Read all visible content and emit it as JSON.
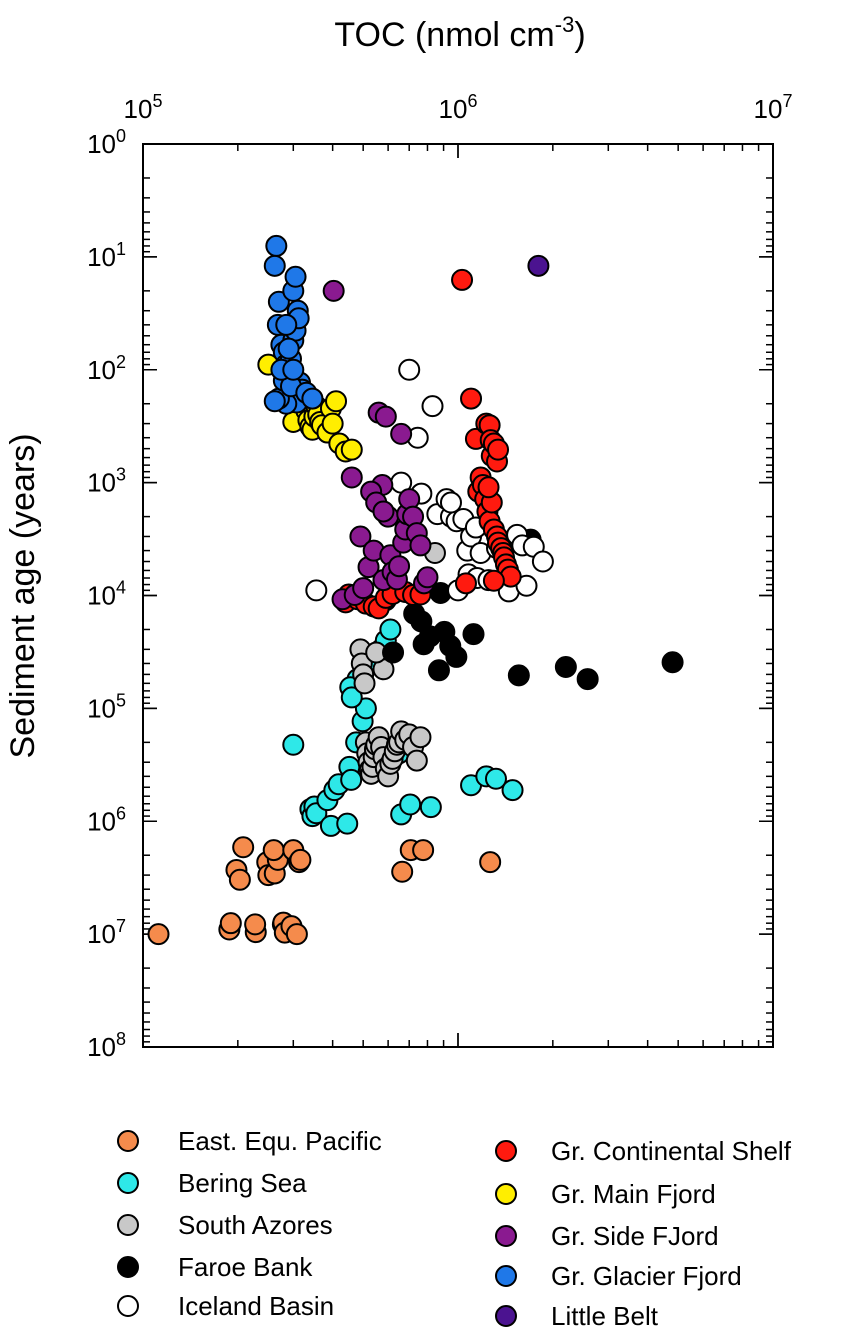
{
  "chart_data": {
    "type": "scatter",
    "title": "",
    "xlabel": "TOC (nmol cm",
    "xlabel_sup": "-3",
    "xlabel_end": ")",
    "ylabel": "Sediment age (years)",
    "x_scale": "log",
    "y_scale": "log",
    "y_inverted": true,
    "x_axis_position": "top",
    "xlim": [
      100000,
      10000000
    ],
    "ylim": [
      1,
      100000000
    ],
    "grid": false,
    "legend_placement": "bottom",
    "x_ticks": [
      {
        "base": "10",
        "exp": "5",
        "value": 100000
      },
      {
        "base": "10",
        "exp": "6",
        "value": 1000000
      },
      {
        "base": "10",
        "exp": "7",
        "value": 10000000
      }
    ],
    "y_ticks": [
      {
        "base": "10",
        "exp": "0",
        "value": 1
      },
      {
        "base": "10",
        "exp": "1",
        "value": 10
      },
      {
        "base": "10",
        "exp": "2",
        "value": 100
      },
      {
        "base": "10",
        "exp": "3",
        "value": 1000
      },
      {
        "base": "10",
        "exp": "4",
        "value": 10000
      },
      {
        "base": "10",
        "exp": "5",
        "value": 100000
      },
      {
        "base": "10",
        "exp": "6",
        "value": 1000000
      },
      {
        "base": "10",
        "exp": "7",
        "value": 10000000
      },
      {
        "base": "10",
        "exp": "8",
        "value": 100000000
      }
    ],
    "series": [
      {
        "name": "East. Equ. Pacific",
        "color": "#f58b4c",
        "points": [
          [
            112000,
            10000000
          ],
          [
            188000,
            9100000
          ],
          [
            190000,
            8000000
          ],
          [
            208000,
            1700000
          ],
          [
            198000,
            2700000
          ],
          [
            203000,
            3300000
          ],
          [
            228000,
            9600000
          ],
          [
            227000,
            8200000
          ],
          [
            248000,
            2300000
          ],
          [
            250000,
            3000000
          ],
          [
            262000,
            2900000
          ],
          [
            268000,
            2200000
          ],
          [
            260000,
            1800000
          ],
          [
            278000,
            8200000
          ],
          [
            279000,
            7900000
          ],
          [
            282000,
            9700000
          ],
          [
            296000,
            8500000
          ],
          [
            300000,
            1800000
          ],
          [
            308000,
            10000000
          ],
          [
            313000,
            2300000
          ],
          [
            316000,
            2200000
          ],
          [
            665000,
            2800000
          ],
          [
            708000,
            1800000
          ],
          [
            775000,
            1800000
          ],
          [
            1265000,
            2300000
          ]
        ]
      },
      {
        "name": "Bering Sea",
        "color": "#2ee8e8",
        "points": [
          [
            300000,
            210000
          ],
          [
            340000,
            780000
          ],
          [
            345000,
            900000
          ],
          [
            350000,
            740000
          ],
          [
            355000,
            850000
          ],
          [
            385000,
            650000
          ],
          [
            395000,
            1100000
          ],
          [
            405000,
            530000
          ],
          [
            418000,
            470000
          ],
          [
            445000,
            1050000
          ],
          [
            452000,
            330000
          ],
          [
            458000,
            430000
          ],
          [
            475000,
            200000
          ],
          [
            498000,
            130000
          ],
          [
            510000,
            100000
          ],
          [
            480000,
            55000
          ],
          [
            455000,
            65000
          ],
          [
            460000,
            80000
          ],
          [
            525000,
            36000
          ],
          [
            545000,
            40000
          ],
          [
            570000,
            30000
          ],
          [
            590000,
            25000
          ],
          [
            610000,
            20000
          ],
          [
            600000,
            320000
          ],
          [
            650000,
            250000
          ],
          [
            660000,
            870000
          ],
          [
            705000,
            710000
          ],
          [
            820000,
            750000
          ],
          [
            1100000,
            480000
          ],
          [
            1230000,
            400000
          ],
          [
            1320000,
            420000
          ],
          [
            1490000,
            530000
          ]
        ]
      },
      {
        "name": "South Azores",
        "color": "#c8c8c8",
        "points": [
          [
            490000,
            30000
          ],
          [
            495000,
            40000
          ],
          [
            500000,
            50000
          ],
          [
            505000,
            60000
          ],
          [
            510000,
            200000
          ],
          [
            515000,
            250000
          ],
          [
            520000,
            300000
          ],
          [
            525000,
            350000
          ],
          [
            530000,
            380000
          ],
          [
            535000,
            330000
          ],
          [
            540000,
            270000
          ],
          [
            545000,
            230000
          ],
          [
            550000,
            210000
          ],
          [
            560000,
            180000
          ],
          [
            570000,
            220000
          ],
          [
            580000,
            270000
          ],
          [
            590000,
            340000
          ],
          [
            600000,
            400000
          ],
          [
            610000,
            310000
          ],
          [
            620000,
            280000
          ],
          [
            630000,
            240000
          ],
          [
            640000,
            210000
          ],
          [
            650000,
            200000
          ],
          [
            660000,
            160000
          ],
          [
            680000,
            190000
          ],
          [
            700000,
            170000
          ],
          [
            720000,
            220000
          ],
          [
            740000,
            290000
          ],
          [
            760000,
            180000
          ],
          [
            845000,
            4200
          ],
          [
            580000,
            45000
          ],
          [
            550000,
            32000
          ]
        ]
      },
      {
        "name": "Faroe Bank",
        "color": "#000000",
        "points": [
          [
            590000,
            11000
          ],
          [
            622000,
            32000
          ],
          [
            726000,
            14500
          ],
          [
            765000,
            17000
          ],
          [
            778000,
            27000
          ],
          [
            815000,
            23000
          ],
          [
            870000,
            46000
          ],
          [
            880000,
            9500
          ],
          [
            905000,
            21000
          ],
          [
            945000,
            28000
          ],
          [
            988000,
            35000
          ],
          [
            1120000,
            22000
          ],
          [
            1560000,
            51000
          ],
          [
            1700000,
            3200
          ],
          [
            2200000,
            43000
          ],
          [
            2580000,
            55000
          ],
          [
            4800000,
            39000
          ]
        ]
      },
      {
        "name": "Iceland Basin",
        "color": "#ffffff",
        "points": [
          [
            355000,
            9000
          ],
          [
            660000,
            1000
          ],
          [
            700000,
            100
          ],
          [
            745000,
            400
          ],
          [
            765000,
            1250
          ],
          [
            830000,
            210
          ],
          [
            860000,
            1900
          ],
          [
            920000,
            1400
          ],
          [
            950000,
            2000
          ],
          [
            990000,
            2200
          ],
          [
            1000000,
            9000
          ],
          [
            1040000,
            2100
          ],
          [
            1070000,
            4000
          ],
          [
            1080000,
            6500
          ],
          [
            1100000,
            3000
          ],
          [
            1150000,
            7000
          ],
          [
            1180000,
            4200
          ],
          [
            1250000,
            7300
          ],
          [
            1330000,
            3800
          ],
          [
            1450000,
            9200
          ],
          [
            1540000,
            2900
          ],
          [
            1600000,
            3600
          ],
          [
            1650000,
            8200
          ],
          [
            1740000,
            3700
          ],
          [
            1860000,
            5000
          ],
          [
            950000,
            1500
          ],
          [
            1140000,
            2500
          ]
        ]
      },
      {
        "name": "Gr. Continental Shelf",
        "color": "#ff1a0f",
        "points": [
          [
            1030000,
            16
          ],
          [
            1100000,
            180
          ],
          [
            1140000,
            410
          ],
          [
            1230000,
            300
          ],
          [
            1260000,
            310
          ],
          [
            1270000,
            420
          ],
          [
            1280000,
            580
          ],
          [
            1300000,
            450
          ],
          [
            1330000,
            650
          ],
          [
            1340000,
            510
          ],
          [
            1160000,
            1200
          ],
          [
            1180000,
            900
          ],
          [
            1200000,
            1050
          ],
          [
            1220000,
            1400
          ],
          [
            1240000,
            1800
          ],
          [
            1260000,
            2200
          ],
          [
            1300000,
            2600
          ],
          [
            1330000,
            3000
          ],
          [
            1340000,
            3400
          ],
          [
            1370000,
            3800
          ],
          [
            1390000,
            4200
          ],
          [
            1400000,
            4600
          ],
          [
            1420000,
            5300
          ],
          [
            1440000,
            5900
          ],
          [
            1470000,
            6800
          ],
          [
            1280000,
            1500
          ],
          [
            1250000,
            1100
          ],
          [
            1060000,
            7800
          ],
          [
            1300000,
            7400
          ],
          [
            440000,
            11500
          ],
          [
            450000,
            9800
          ],
          [
            480000,
            10800
          ],
          [
            510000,
            11800
          ],
          [
            540000,
            12500
          ],
          [
            560000,
            13000
          ],
          [
            590000,
            10500
          ],
          [
            620000,
            9700
          ],
          [
            680000,
            9300
          ],
          [
            720000,
            9900
          ],
          [
            760000,
            9800
          ]
        ]
      },
      {
        "name": "Gr. Main Fjord",
        "color": "#ffee00",
        "points": [
          [
            250000,
            90
          ],
          [
            300000,
            290
          ],
          [
            325000,
            190
          ],
          [
            330000,
            230
          ],
          [
            335000,
            280
          ],
          [
            340000,
            320
          ],
          [
            345000,
            340
          ],
          [
            350000,
            260
          ],
          [
            355000,
            210
          ],
          [
            360000,
            250
          ],
          [
            365000,
            290
          ],
          [
            370000,
            310
          ],
          [
            385000,
            360
          ],
          [
            395000,
            220
          ],
          [
            400000,
            300
          ],
          [
            410000,
            190
          ],
          [
            420000,
            450
          ],
          [
            440000,
            530
          ],
          [
            460000,
            510
          ]
        ]
      },
      {
        "name": "Gr. Side FJord",
        "color": "#8a1a90",
        "points": [
          [
            403000,
            20
          ],
          [
            460000,
            900
          ],
          [
            490000,
            3000
          ],
          [
            520000,
            5600
          ],
          [
            540000,
            4000
          ],
          [
            560000,
            240
          ],
          [
            575000,
            1050
          ],
          [
            580000,
            7300
          ],
          [
            590000,
            260
          ],
          [
            600000,
            2000
          ],
          [
            610000,
            4400
          ],
          [
            620000,
            6200
          ],
          [
            640000,
            7200
          ],
          [
            650000,
            5500
          ],
          [
            660000,
            370
          ],
          [
            670000,
            3400
          ],
          [
            680000,
            2600
          ],
          [
            690000,
            1900
          ],
          [
            700000,
            1400
          ],
          [
            720000,
            2000
          ],
          [
            740000,
            2800
          ],
          [
            760000,
            3600
          ],
          [
            780000,
            7800
          ],
          [
            800000,
            6900
          ],
          [
            430000,
            10800
          ],
          [
            470000,
            9900
          ],
          [
            500000,
            8600
          ],
          [
            530000,
            1200
          ],
          [
            550000,
            1500
          ],
          [
            580000,
            1800
          ]
        ]
      },
      {
        "name": "Gr. Glacier Fjord",
        "color": "#1f78e8",
        "points": [
          [
            265000,
            8
          ],
          [
            262000,
            12
          ],
          [
            270000,
            25
          ],
          [
            268000,
            40
          ],
          [
            275000,
            60
          ],
          [
            280000,
            70
          ],
          [
            285000,
            90
          ],
          [
            290000,
            110
          ],
          [
            295000,
            80
          ],
          [
            300000,
            55
          ],
          [
            305000,
            45
          ],
          [
            310000,
            30
          ],
          [
            312000,
            35
          ],
          [
            300000,
            20
          ],
          [
            305000,
            15
          ],
          [
            315000,
            130
          ],
          [
            320000,
            150
          ],
          [
            322000,
            170
          ],
          [
            308000,
            195
          ],
          [
            285000,
            200
          ],
          [
            270000,
            180
          ],
          [
            262000,
            190
          ],
          [
            280000,
            125
          ],
          [
            295000,
            140
          ],
          [
            330000,
            160
          ],
          [
            345000,
            180
          ],
          [
            290000,
            65
          ],
          [
            275000,
            100
          ],
          [
            300000,
            100
          ],
          [
            285000,
            40
          ]
        ]
      },
      {
        "name": "Little Belt",
        "color": "#4b1390",
        "points": [
          [
            1800000,
            12
          ]
        ]
      }
    ]
  }
}
